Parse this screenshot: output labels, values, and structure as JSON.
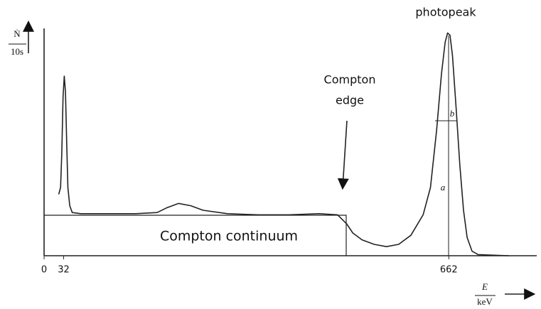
{
  "chart_data": {
    "type": "line",
    "ylabel": {
      "numerator": "Ṅ",
      "denominator": "10s"
    },
    "xlabel": {
      "numerator": "E",
      "denominator": "keV"
    },
    "annotations": {
      "photopeak": "photopeak",
      "edge_line1": "Compton",
      "edge_line2": "edge",
      "continuum": "Compton continuum",
      "a": "a",
      "b": "b"
    },
    "xlim": [
      0,
      800
    ],
    "ylim": [
      0,
      100
    ],
    "xticks": [
      0,
      32,
      662
    ],
    "color": "#222222",
    "x": [
      24,
      27,
      29,
      31,
      33,
      35,
      37,
      39,
      42,
      46,
      60,
      100,
      150,
      185,
      200,
      220,
      240,
      260,
      300,
      350,
      400,
      450,
      480,
      495,
      505,
      520,
      540,
      560,
      580,
      600,
      620,
      632,
      642,
      650,
      656,
      660,
      664,
      668,
      674,
      680,
      686,
      692,
      700,
      710,
      760
    ],
    "values": [
      27,
      30,
      45,
      70,
      79,
      72,
      50,
      30,
      22,
      19,
      18.5,
      18.5,
      18.5,
      19,
      21,
      23,
      22,
      20,
      18.5,
      18,
      18,
      18.5,
      18,
      14,
      10,
      7,
      5,
      4,
      5,
      9,
      18,
      30,
      55,
      80,
      94,
      98,
      97,
      88,
      65,
      40,
      20,
      8,
      2,
      0.5,
      0
    ]
  }
}
